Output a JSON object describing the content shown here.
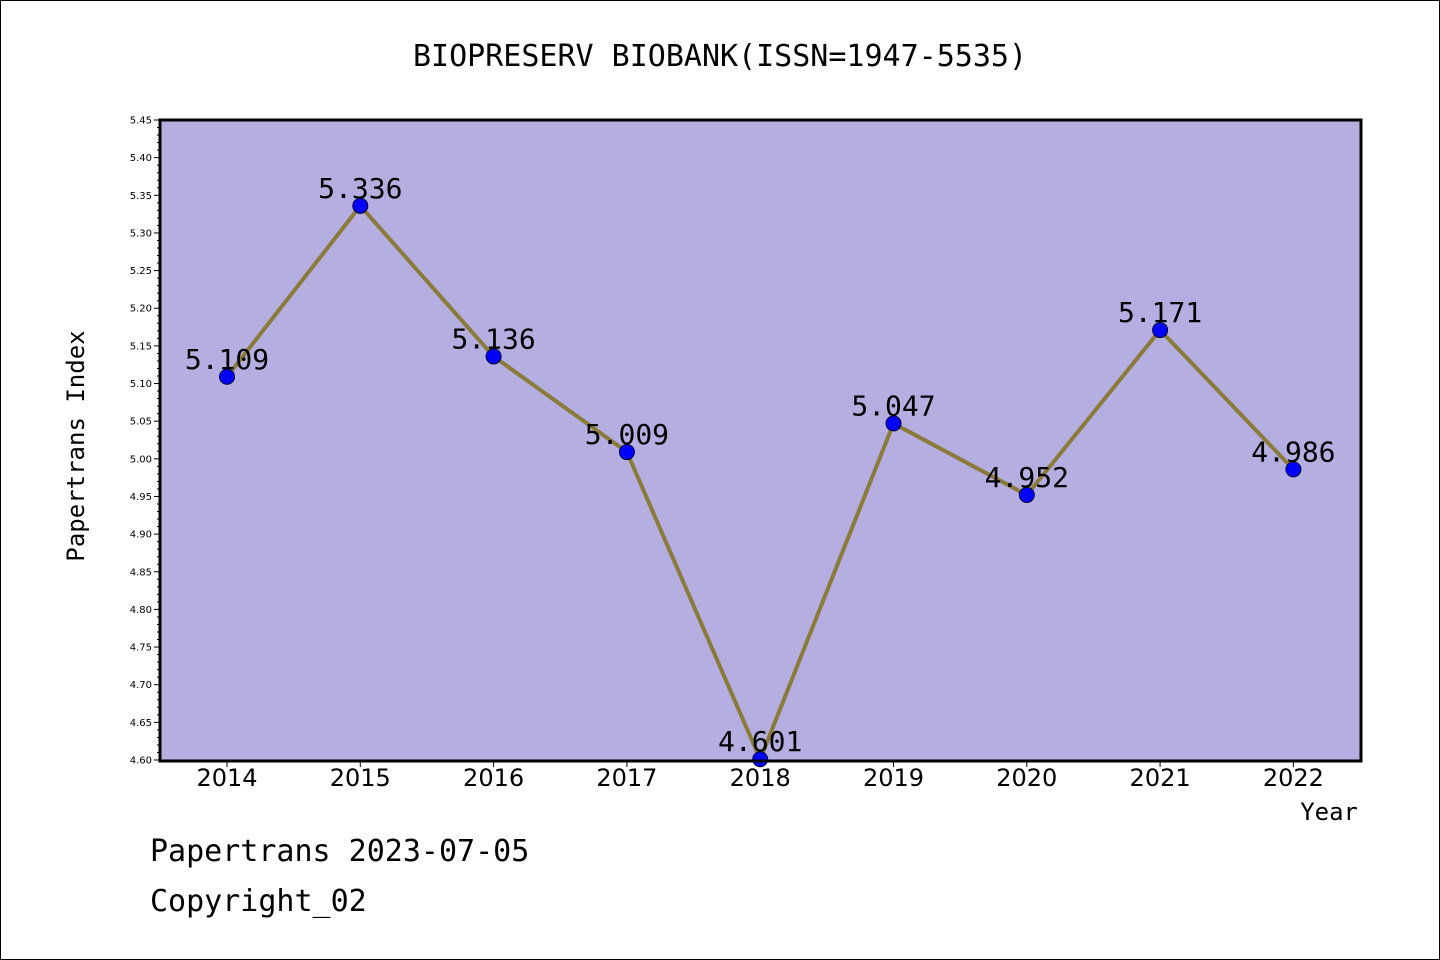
{
  "chart_data": {
    "type": "line",
    "title": "BIOPRESERV BIOBANK(ISSN=1947-5535)",
    "xlabel": "Year",
    "ylabel": "Papertrans Index",
    "categories": [
      "2014",
      "2015",
      "2016",
      "2017",
      "2018",
      "2019",
      "2020",
      "2021",
      "2022"
    ],
    "values": [
      5.109,
      5.336,
      5.136,
      5.009,
      4.601,
      5.047,
      4.952,
      5.171,
      4.986
    ],
    "value_labels": [
      "5.109",
      "5.336",
      "5.136",
      "5.009",
      "4.601",
      "5.047",
      "4.952",
      "5.171",
      "4.986"
    ],
    "ylim": [
      4.6,
      5.45
    ],
    "yticks": [
      "4.60",
      "4.65",
      "4.70",
      "4.75",
      "4.80",
      "4.85",
      "4.90",
      "4.95",
      "5.00",
      "5.05",
      "5.10",
      "5.15",
      "5.20",
      "5.25",
      "5.30",
      "5.35",
      "5.40",
      "5.45"
    ],
    "grid": false,
    "legend": "none",
    "colors": {
      "plot_background": "#b5aee1",
      "line": "#8b7b3a",
      "marker": "#0000ff"
    }
  },
  "footer": {
    "line1": "Papertrans 2023-07-05",
    "line2": "Copyright_02"
  }
}
